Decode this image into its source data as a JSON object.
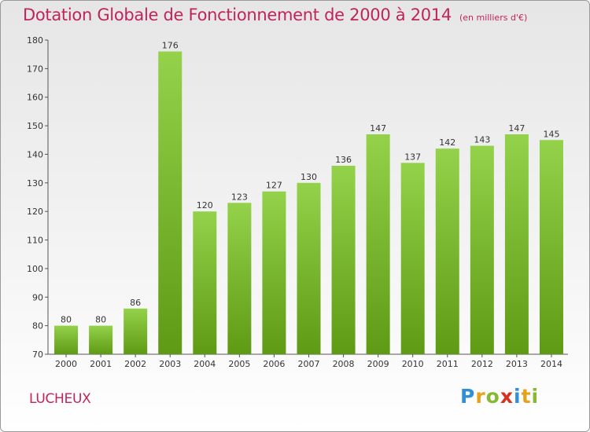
{
  "title": "Dotation Globale de Fonctionnement de 2000 à 2014",
  "subtitle": "(en milliers d'€)",
  "commune": "LUCHEUX",
  "logo": {
    "letters": [
      "P",
      "r",
      "o",
      "x",
      "i",
      "t",
      "i"
    ],
    "colors": [
      "#2f8fd8",
      "#e8a21a",
      "#88b832",
      "#d8311f",
      "#2f8fd8",
      "#e8a21a",
      "#88b832"
    ]
  },
  "colors": {
    "bar": "#7fc030",
    "bar_dark": "#5f9a14",
    "title": "#c0245c"
  },
  "chart_data": {
    "type": "bar",
    "title": "Dotation Globale de Fonctionnement de 2000 à 2014",
    "subtitle": "(en milliers d'€)",
    "categories": [
      "2000",
      "2001",
      "2002",
      "2003",
      "2004",
      "2005",
      "2006",
      "2007",
      "2008",
      "2009",
      "2010",
      "2011",
      "2012",
      "2013",
      "2014"
    ],
    "values": [
      80,
      80,
      86,
      176,
      120,
      123,
      127,
      130,
      136,
      147,
      137,
      142,
      143,
      147,
      145
    ],
    "ylim": [
      70,
      180
    ],
    "yticks": [
      70,
      80,
      90,
      100,
      110,
      120,
      130,
      140,
      150,
      160,
      170,
      180
    ],
    "grid": false,
    "legend": "none"
  }
}
